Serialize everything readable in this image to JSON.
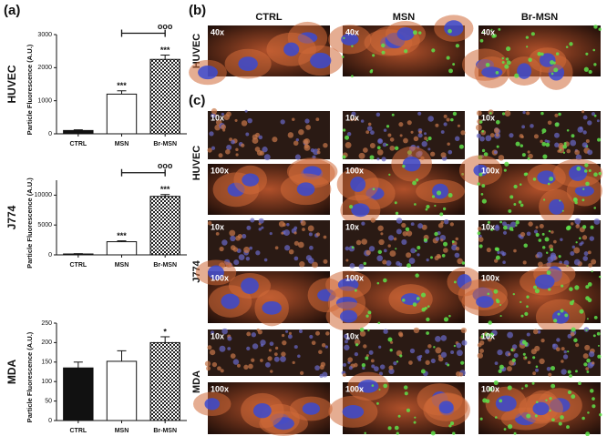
{
  "panels": {
    "a": "(a)",
    "b": "(b)",
    "c": "(c)"
  },
  "columns": [
    "CTRL",
    "MSN",
    "Br-MSN"
  ],
  "rows_b": [
    {
      "label": "HUVEC",
      "images": [
        "40x",
        "40x",
        "40x"
      ]
    }
  ],
  "rows_c": [
    {
      "label": "HUVEC",
      "images": [
        [
          "10x",
          "10x",
          "10x"
        ],
        [
          "100x",
          "100x",
          "100x"
        ]
      ]
    },
    {
      "label": "J774",
      "images": [
        [
          "10x",
          "10x",
          "10x"
        ],
        [
          "100x",
          "100x",
          "100x"
        ]
      ]
    },
    {
      "label": "MDA",
      "images": [
        [
          "10x",
          "10x",
          "10x"
        ],
        [
          "100x",
          "100x",
          "100x"
        ]
      ]
    }
  ],
  "chart_data": [
    {
      "type": "bar",
      "title": "HUVEC",
      "y_label": "Particle Fluorescence (A.U.)",
      "categories": [
        "CTRL",
        "MSN",
        "Br-MSN"
      ],
      "values": [
        100,
        1200,
        2250
      ],
      "errors": [
        20,
        100,
        130
      ],
      "colors": [
        "#111111",
        "#ffffff",
        "#ffffff"
      ],
      "hatch": [
        false,
        false,
        true
      ],
      "annotations": [
        null,
        "***",
        "***"
      ],
      "comparison_label": "ooo",
      "ylim": [
        0,
        3000
      ],
      "yticks": [
        0,
        1000,
        2000,
        3000
      ]
    },
    {
      "type": "bar",
      "title": "J774",
      "y_label": "Particle Fluorescence (A.U.)",
      "categories": [
        "CTRL",
        "MSN",
        "Br-MSN"
      ],
      "values": [
        150,
        2200,
        9800
      ],
      "errors": [
        50,
        150,
        300
      ],
      "colors": [
        "#111111",
        "#ffffff",
        "#ffffff"
      ],
      "hatch": [
        false,
        false,
        true
      ],
      "annotations": [
        null,
        "***",
        "***"
      ],
      "comparison_label": "ooo",
      "ylim": [
        0,
        12500
      ],
      "yticks": [
        0,
        5000,
        10000
      ]
    },
    {
      "type": "bar",
      "title": "MDA",
      "y_label": "Particle Fluorescence (A.U.)",
      "categories": [
        "CTRL",
        "MSN",
        "Br-MSN"
      ],
      "values": [
        135,
        152,
        200
      ],
      "errors": [
        15,
        27,
        15
      ],
      "colors": [
        "#111111",
        "#ffffff",
        "#ffffff"
      ],
      "hatch": [
        false,
        false,
        true
      ],
      "annotations": [
        null,
        null,
        "*"
      ],
      "ylim": [
        0,
        250
      ],
      "yticks": [
        0,
        50,
        100,
        150,
        200,
        250
      ]
    }
  ]
}
